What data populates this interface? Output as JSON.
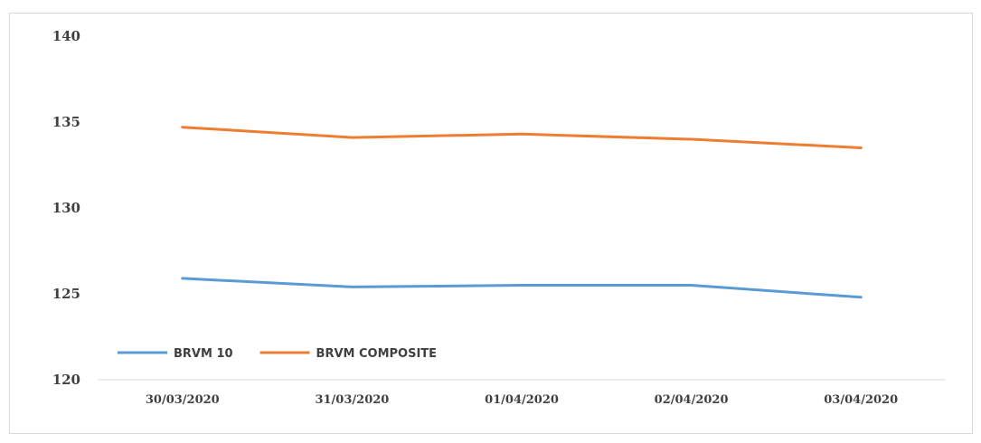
{
  "chart_data": {
    "type": "line",
    "title": "",
    "xlabel": "",
    "ylabel": "",
    "categories": [
      "30/03/2020",
      "31/03/2020",
      "01/04/2020",
      "02/04/2020",
      "03/04/2020"
    ],
    "ylim": [
      120,
      140
    ],
    "yticks": [
      "120",
      "125",
      "130",
      "135",
      "140"
    ],
    "grid": false,
    "legend_position": "bottom-left",
    "series": [
      {
        "name": "BRVM 10",
        "color": "#5b9bd5",
        "values": [
          125.9,
          125.4,
          125.5,
          125.5,
          124.8
        ]
      },
      {
        "name": "BRVM COMPOSITE",
        "color": "#ed7d31",
        "values": [
          134.7,
          134.1,
          134.3,
          134.0,
          133.5
        ]
      }
    ]
  }
}
